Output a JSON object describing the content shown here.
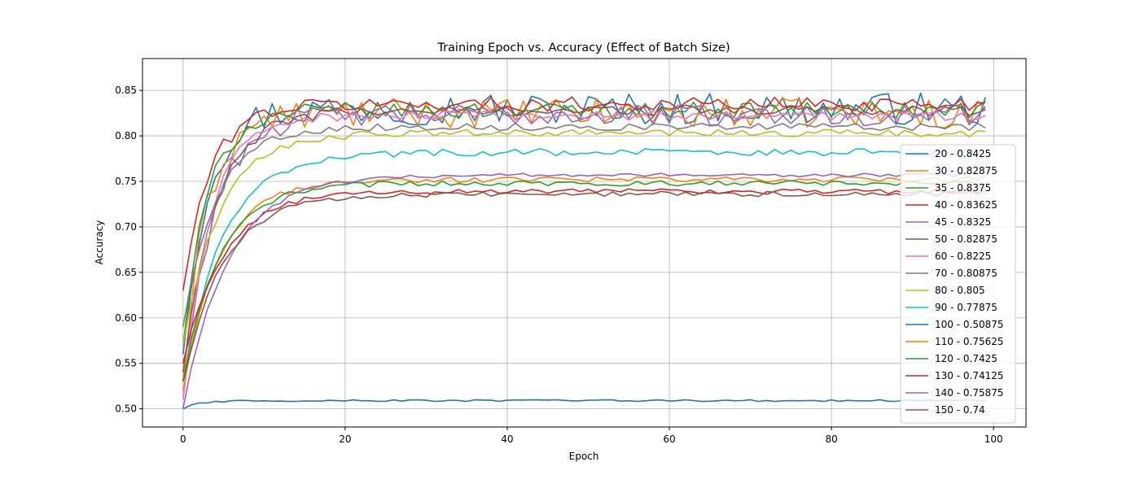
{
  "chart_data": {
    "type": "line",
    "title": "Training Epoch vs. Accuracy (Effect of Batch Size)",
    "xlabel": "Epoch",
    "ylabel": "Accuracy",
    "xlim": [
      -5,
      104
    ],
    "ylim": [
      0.48,
      0.885
    ],
    "xticks": [
      0,
      20,
      40,
      60,
      80,
      100
    ],
    "yticks": [
      0.5,
      0.55,
      0.6,
      0.65,
      0.7,
      0.75,
      0.8,
      0.85
    ],
    "grid": true,
    "legend_position": "center-right",
    "series": [
      {
        "name": "20 - 0.8425",
        "color": "#1f77b4",
        "start": 0.56,
        "k": 0.35,
        "plateau": 0.83,
        "noise": 0.018,
        "end": 0.8425
      },
      {
        "name": "30 - 0.82875",
        "color": "#ff7f0e",
        "start": 0.53,
        "k": 0.35,
        "plateau": 0.825,
        "noise": 0.016,
        "end": 0.82875
      },
      {
        "name": "35 - 0.8375",
        "color": "#2ca02c",
        "start": 0.57,
        "k": 0.33,
        "plateau": 0.828,
        "noise": 0.009,
        "end": 0.8375
      },
      {
        "name": "40 - 0.83625",
        "color": "#d62728",
        "start": 0.63,
        "k": 0.3,
        "plateau": 0.835,
        "noise": 0.008,
        "end": 0.83625
      },
      {
        "name": "45 - 0.8325",
        "color": "#9467bd",
        "start": 0.51,
        "k": 0.28,
        "plateau": 0.823,
        "noise": 0.012,
        "end": 0.8325
      },
      {
        "name": "50 - 0.82875",
        "color": "#8c564b",
        "start": 0.54,
        "k": 0.25,
        "plateau": 0.828,
        "noise": 0.006,
        "end": 0.82875
      },
      {
        "name": "60 - 0.8225",
        "color": "#e377c2",
        "start": 0.51,
        "k": 0.3,
        "plateau": 0.822,
        "noise": 0.005,
        "end": 0.8225
      },
      {
        "name": "70 - 0.80875",
        "color": "#7f7f7f",
        "start": 0.59,
        "k": 0.25,
        "plateau": 0.81,
        "noise": 0.004,
        "end": 0.80875
      },
      {
        "name": "80 - 0.805",
        "color": "#bcbd22",
        "start": 0.57,
        "k": 0.22,
        "plateau": 0.803,
        "noise": 0.004,
        "end": 0.805
      },
      {
        "name": "90 - 0.77875",
        "color": "#17becf",
        "start": 0.53,
        "k": 0.2,
        "plateau": 0.782,
        "noise": 0.004,
        "end": 0.77875
      },
      {
        "name": "100 - 0.50875",
        "color": "#1f77b4",
        "start": 0.5,
        "k": 0.5,
        "plateau": 0.509,
        "noise": 0.001,
        "end": 0.50875
      },
      {
        "name": "110 - 0.75625",
        "color": "#ff7f0e",
        "start": 0.52,
        "k": 0.22,
        "plateau": 0.752,
        "noise": 0.003,
        "end": 0.75625
      },
      {
        "name": "120 - 0.7425",
        "color": "#2ca02c",
        "start": 0.53,
        "k": 0.22,
        "plateau": 0.748,
        "noise": 0.003,
        "end": 0.7425
      },
      {
        "name": "130 - 0.74125",
        "color": "#d62728",
        "start": 0.55,
        "k": 0.2,
        "plateau": 0.739,
        "noise": 0.003,
        "end": 0.74125
      },
      {
        "name": "140 - 0.75875",
        "color": "#9467bd",
        "start": 0.5,
        "k": 0.18,
        "plateau": 0.757,
        "noise": 0.002,
        "end": 0.75875
      },
      {
        "name": "150 - 0.74",
        "color": "#8c564b",
        "start": 0.53,
        "k": 0.2,
        "plateau": 0.736,
        "noise": 0.003,
        "end": 0.74
      }
    ]
  }
}
